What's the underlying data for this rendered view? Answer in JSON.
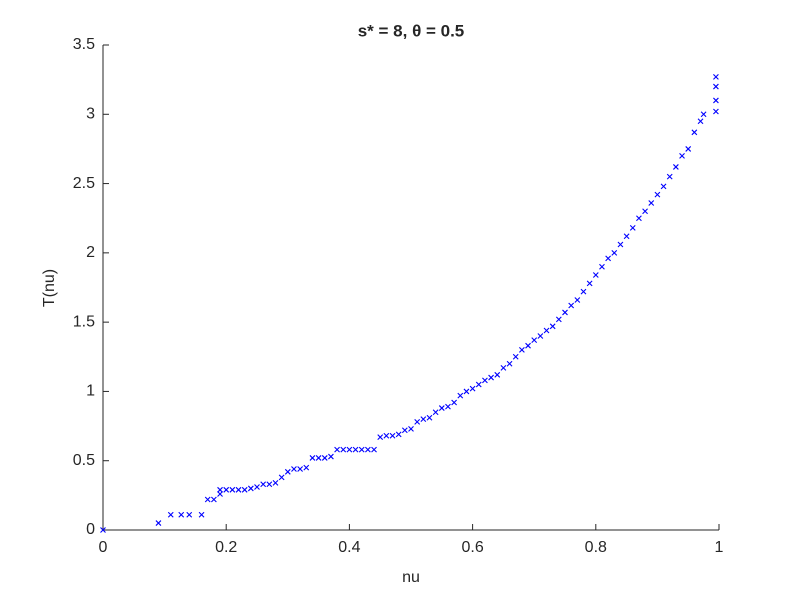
{
  "chart_data": {
    "type": "scatter",
    "title": "s* = 8, θ = 0.5",
    "x_label": "nu",
    "y_label": "T(nu)",
    "color": "#0000ff",
    "marker": "x",
    "xlim": [
      0,
      1
    ],
    "ylim": [
      0,
      3.5
    ],
    "xticks": [
      0,
      0.2,
      0.4,
      0.6,
      0.8,
      1
    ],
    "yticks": [
      0,
      0.5,
      1,
      1.5,
      2,
      2.5,
      3,
      3.5
    ],
    "x": [
      0,
      0.09,
      0.11,
      0.127,
      0.14,
      0.16,
      0.17,
      0.18,
      0.19,
      0.19,
      0.2,
      0.21,
      0.22,
      0.23,
      0.24,
      0.25,
      0.26,
      0.27,
      0.28,
      0.29,
      0.3,
      0.31,
      0.32,
      0.33,
      0.34,
      0.35,
      0.36,
      0.37,
      0.38,
      0.39,
      0.4,
      0.41,
      0.42,
      0.43,
      0.44,
      0.45,
      0.46,
      0.47,
      0.48,
      0.49,
      0.5,
      0.51,
      0.52,
      0.53,
      0.54,
      0.55,
      0.56,
      0.57,
      0.58,
      0.59,
      0.6,
      0.61,
      0.62,
      0.63,
      0.64,
      0.65,
      0.66,
      0.67,
      0.68,
      0.69,
      0.7,
      0.71,
      0.72,
      0.73,
      0.74,
      0.75,
      0.76,
      0.77,
      0.78,
      0.79,
      0.8,
      0.81,
      0.82,
      0.83,
      0.84,
      0.85,
      0.86,
      0.87,
      0.88,
      0.89,
      0.9,
      0.91,
      0.92,
      0.93,
      0.94,
      0.95,
      0.96,
      0.97,
      0.975,
      0.995,
      0.995,
      0.995,
      0.995
    ],
    "values": [
      0,
      0.05,
      0.11,
      0.11,
      0.11,
      0.11,
      0.22,
      0.22,
      0.29,
      0.26,
      0.29,
      0.29,
      0.29,
      0.29,
      0.3,
      0.31,
      0.33,
      0.33,
      0.34,
      0.38,
      0.42,
      0.44,
      0.44,
      0.45,
      0.52,
      0.52,
      0.52,
      0.53,
      0.58,
      0.58,
      0.58,
      0.58,
      0.58,
      0.58,
      0.58,
      0.67,
      0.68,
      0.68,
      0.69,
      0.72,
      0.73,
      0.78,
      0.8,
      0.81,
      0.85,
      0.88,
      0.89,
      0.92,
      0.97,
      1.0,
      1.02,
      1.05,
      1.08,
      1.1,
      1.12,
      1.17,
      1.2,
      1.25,
      1.3,
      1.33,
      1.37,
      1.4,
      1.44,
      1.47,
      1.52,
      1.57,
      1.62,
      1.66,
      1.72,
      1.78,
      1.84,
      1.9,
      1.96,
      2.0,
      2.06,
      2.12,
      2.18,
      2.25,
      2.3,
      2.36,
      2.42,
      2.48,
      2.55,
      2.62,
      2.7,
      2.75,
      2.87,
      2.95,
      3.0,
      3.02,
      3.1,
      3.2,
      3.27
    ]
  }
}
